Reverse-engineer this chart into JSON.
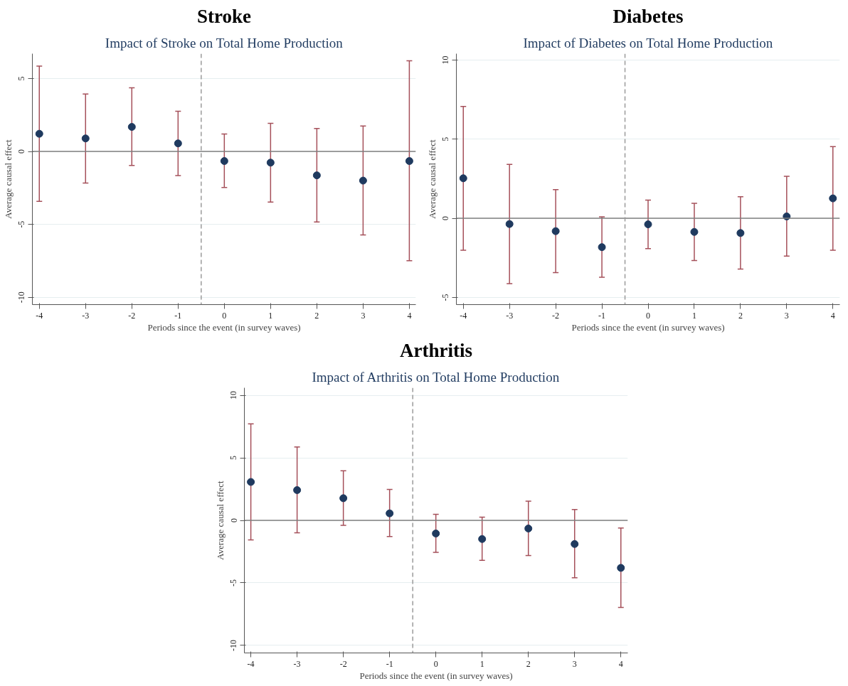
{
  "chart_data": [
    {
      "type": "scatter",
      "title": "Stroke",
      "subtitle": "Impact of Stroke on Total Home Production",
      "xlabel": "Periods since the event (in survey waves)",
      "ylabel": "Average causal effect",
      "x": [
        -4,
        -3,
        -2,
        -1,
        0,
        1,
        2,
        3,
        4
      ],
      "xlim": [
        -4.15,
        4.14
      ],
      "xticks": [
        -4,
        -3,
        -2,
        -1,
        0,
        1,
        2,
        3,
        4
      ],
      "ylim": [
        -10.5,
        6.7
      ],
      "yticks": [
        -10,
        -5,
        0,
        5
      ],
      "series": [
        {
          "color": "#1f3a5f",
          "values": [
            1.21,
            0.89,
            1.68,
            0.55,
            -0.66,
            -0.77,
            -1.64,
            -2.0,
            -0.66
          ],
          "errors": [
            [
              -3.42,
              5.85
            ],
            [
              -2.17,
              3.94
            ],
            [
              -0.96,
              4.36
            ],
            [
              -1.66,
              2.75
            ],
            [
              -2.47,
              1.19
            ],
            [
              -3.47,
              1.92
            ],
            [
              -4.83,
              1.57
            ],
            [
              -5.72,
              1.74
            ],
            [
              -7.49,
              6.21
            ]
          ]
        }
      ],
      "ref_lines": [
        {
          "axis": "y",
          "value": 0,
          "color": "#7f7f7f",
          "line_style": "solid"
        },
        {
          "axis": "x",
          "value": -0.5,
          "color": "#9a9a9a",
          "line_style": "dashed"
        }
      ],
      "grid": "y",
      "marker": "circle"
    },
    {
      "type": "scatter",
      "title": "Diabetes",
      "subtitle": "Impact of Diabetes on Total Home Production",
      "xlabel": "Periods since the event (in survey waves)",
      "ylabel": "Average causal effect",
      "x": [
        -4,
        -3,
        -2,
        -1,
        0,
        1,
        2,
        3,
        4
      ],
      "xlim": [
        -4.15,
        4.15
      ],
      "xticks": [
        -4,
        -3,
        -2,
        -1,
        0,
        1,
        2,
        3,
        4
      ],
      "ylim": [
        -5.45,
        10.4
      ],
      "yticks": [
        -5,
        0,
        5,
        10
      ],
      "series": [
        {
          "color": "#1f3a5f",
          "values": [
            2.53,
            -0.36,
            -0.81,
            -1.82,
            -0.38,
            -0.86,
            -0.93,
            0.12,
            1.26
          ],
          "errors": [
            [
              -2.01,
              7.07
            ],
            [
              -4.13,
              3.41
            ],
            [
              -3.43,
              1.81
            ],
            [
              -3.72,
              0.09
            ],
            [
              -1.91,
              1.15
            ],
            [
              -2.67,
              0.95
            ],
            [
              -3.2,
              1.36
            ],
            [
              -2.39,
              2.65
            ],
            [
              -2.01,
              4.53
            ]
          ]
        }
      ],
      "ref_lines": [
        {
          "axis": "y",
          "value": 0,
          "color": "#7f7f7f",
          "line_style": "solid"
        },
        {
          "axis": "x",
          "value": -0.5,
          "color": "#9a9a9a",
          "line_style": "dashed"
        }
      ],
      "grid": "y",
      "marker": "circle"
    },
    {
      "type": "scatter",
      "title": "Arthritis",
      "subtitle": "Impact of Arthritis on Total Home Production",
      "xlabel": "Periods since the event (in survey waves)",
      "ylabel": "Average causal effect",
      "x": [
        -4,
        -3,
        -2,
        -1,
        0,
        1,
        2,
        3,
        4
      ],
      "xlim": [
        -4.14,
        4.15
      ],
      "xticks": [
        -4,
        -3,
        -2,
        -1,
        0,
        1,
        2,
        3,
        4
      ],
      "ylim": [
        -10.6,
        10.6
      ],
      "yticks": [
        -10,
        -5,
        0,
        5,
        10
      ],
      "series": [
        {
          "color": "#1f3a5f",
          "values": [
            3.07,
            2.42,
            1.77,
            0.56,
            -1.05,
            -1.49,
            -0.65,
            -1.89,
            -3.8
          ],
          "errors": [
            [
              -1.56,
              7.71
            ],
            [
              -1.0,
              5.87
            ],
            [
              -0.4,
              3.96
            ],
            [
              -1.3,
              2.47
            ],
            [
              -2.56,
              0.49
            ],
            [
              -3.19,
              0.26
            ],
            [
              -2.82,
              1.54
            ],
            [
              -4.59,
              0.86
            ],
            [
              -6.96,
              -0.61
            ]
          ]
        }
      ],
      "ref_lines": [
        {
          "axis": "y",
          "value": 0,
          "color": "#7f7f7f",
          "line_style": "solid"
        },
        {
          "axis": "x",
          "value": -0.5,
          "color": "#9a9a9a",
          "line_style": "dashed"
        }
      ],
      "grid": "y",
      "marker": "circle"
    }
  ]
}
